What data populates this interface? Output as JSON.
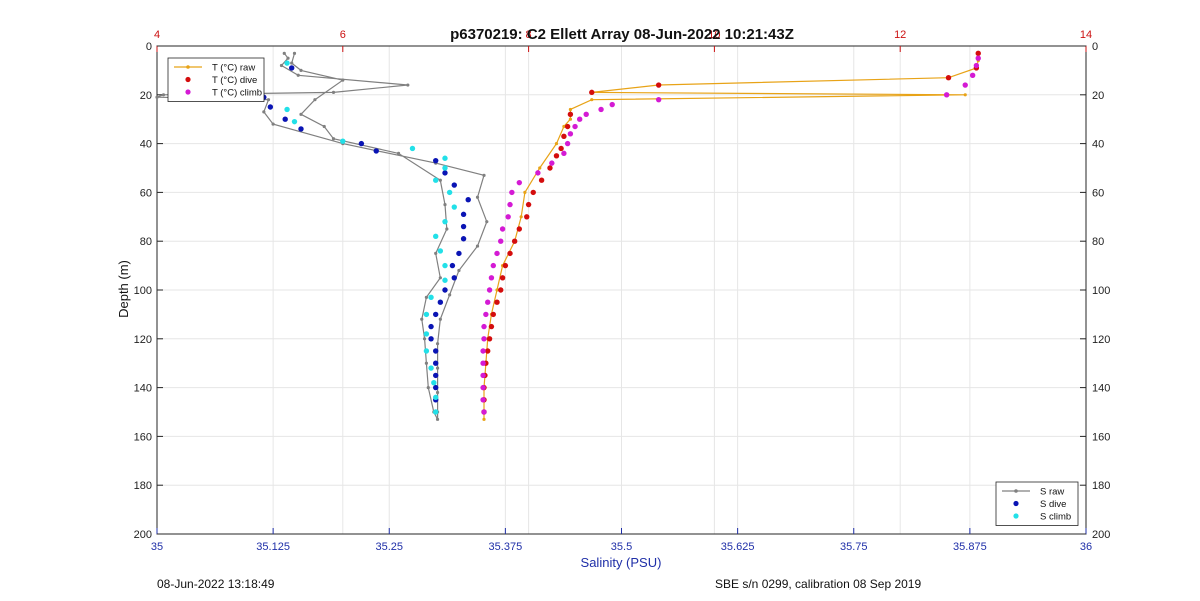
{
  "chart_data": {
    "type": "line",
    "title": "p6370219: C2 Ellett Array 08-Jun-2022 10:21:43Z",
    "xlabel": "Salinity (PSU)",
    "ylabel": "Depth (m)",
    "xlim": [
      35,
      36
    ],
    "xticks": [
      "35",
      "35.125",
      "35.25",
      "35.375",
      "35.5",
      "35.625",
      "35.75",
      "35.875",
      "36"
    ],
    "x2lim": [
      4,
      14
    ],
    "x2ticks": [
      "4",
      "6",
      "8",
      "10",
      "12",
      "14"
    ],
    "ylim": [
      0,
      200
    ],
    "y_reversed": true,
    "yticks": [
      "0",
      "20",
      "40",
      "60",
      "80",
      "100",
      "120",
      "140",
      "160",
      "180",
      "200"
    ],
    "grid": true,
    "legends": {
      "temperature": {
        "placement": "top-left",
        "entries": [
          "T (°C) raw",
          "T (°C) dive",
          "T (°C) climb"
        ]
      },
      "salinity": {
        "placement": "bottom-right",
        "entries": [
          "S raw",
          "S dive",
          "S climb"
        ]
      }
    },
    "series": [
      {
        "name": "T (°C) raw",
        "axis": "top",
        "color": "#e8a317",
        "style": "line-marker",
        "points": [
          [
            12.84,
            3
          ],
          [
            12.84,
            6
          ],
          [
            12.82,
            9
          ],
          [
            12.52,
            13
          ],
          [
            9.4,
            16
          ],
          [
            8.68,
            19
          ],
          [
            12.7,
            20
          ],
          [
            8.68,
            22
          ],
          [
            8.45,
            26
          ],
          [
            8.45,
            30
          ],
          [
            8.38,
            33
          ],
          [
            8.3,
            40
          ],
          [
            8.12,
            50
          ],
          [
            7.96,
            60
          ],
          [
            7.92,
            70
          ],
          [
            7.85,
            80
          ],
          [
            7.72,
            90
          ],
          [
            7.66,
            100
          ],
          [
            7.6,
            110
          ],
          [
            7.56,
            120
          ],
          [
            7.54,
            130
          ],
          [
            7.52,
            140
          ],
          [
            7.52,
            150
          ],
          [
            7.52,
            153
          ]
        ]
      },
      {
        "name": "T (°C) dive",
        "axis": "top",
        "color": "#d40d0d",
        "style": "marker",
        "points": [
          [
            12.84,
            3
          ],
          [
            12.82,
            9
          ],
          [
            12.52,
            13
          ],
          [
            9.4,
            16
          ],
          [
            8.68,
            19
          ],
          [
            8.45,
            28
          ],
          [
            8.42,
            33
          ],
          [
            8.38,
            37
          ],
          [
            8.35,
            42
          ],
          [
            8.3,
            45
          ],
          [
            8.23,
            50
          ],
          [
            8.14,
            55
          ],
          [
            8.05,
            60
          ],
          [
            8.0,
            65
          ],
          [
            7.98,
            70
          ],
          [
            7.9,
            75
          ],
          [
            7.85,
            80
          ],
          [
            7.8,
            85
          ],
          [
            7.75,
            90
          ],
          [
            7.72,
            95
          ],
          [
            7.7,
            100
          ],
          [
            7.66,
            105
          ],
          [
            7.62,
            110
          ],
          [
            7.6,
            115
          ],
          [
            7.58,
            120
          ],
          [
            7.56,
            125
          ],
          [
            7.54,
            130
          ],
          [
            7.53,
            135
          ],
          [
            7.52,
            140
          ],
          [
            7.52,
            145
          ],
          [
            7.52,
            150
          ]
        ]
      },
      {
        "name": "T (°C) climb",
        "axis": "top",
        "color": "#d41ad4",
        "style": "marker",
        "points": [
          [
            12.84,
            5
          ],
          [
            12.82,
            8
          ],
          [
            12.78,
            12
          ],
          [
            12.7,
            16
          ],
          [
            12.5,
            20
          ],
          [
            9.4,
            22
          ],
          [
            8.9,
            24
          ],
          [
            8.78,
            26
          ],
          [
            8.62,
            28
          ],
          [
            8.55,
            30
          ],
          [
            8.5,
            33
          ],
          [
            8.45,
            36
          ],
          [
            8.42,
            40
          ],
          [
            8.38,
            44
          ],
          [
            8.25,
            48
          ],
          [
            8.1,
            52
          ],
          [
            7.9,
            56
          ],
          [
            7.82,
            60
          ],
          [
            7.8,
            65
          ],
          [
            7.78,
            70
          ],
          [
            7.72,
            75
          ],
          [
            7.7,
            80
          ],
          [
            7.66,
            85
          ],
          [
            7.62,
            90
          ],
          [
            7.6,
            95
          ],
          [
            7.58,
            100
          ],
          [
            7.56,
            105
          ],
          [
            7.54,
            110
          ],
          [
            7.52,
            115
          ],
          [
            7.52,
            120
          ],
          [
            7.51,
            125
          ],
          [
            7.51,
            130
          ],
          [
            7.51,
            135
          ],
          [
            7.51,
            140
          ],
          [
            7.51,
            145
          ],
          [
            7.52,
            150
          ]
        ]
      },
      {
        "name": "S raw",
        "axis": "bottom",
        "color": "#808080",
        "style": "line-marker",
        "points": [
          [
            35.137,
            3
          ],
          [
            35.141,
            5
          ],
          [
            35.134,
            8
          ],
          [
            35.152,
            12
          ],
          [
            35.27,
            16
          ],
          [
            35.19,
            19
          ],
          [
            35.007,
            20
          ],
          [
            35.0,
            21
          ],
          [
            35.12,
            22
          ],
          [
            35.115,
            27
          ],
          [
            35.125,
            32
          ],
          [
            35.2,
            40
          ],
          [
            35.3,
            48
          ],
          [
            35.352,
            53
          ],
          [
            35.345,
            62
          ],
          [
            35.355,
            72
          ],
          [
            35.345,
            82
          ],
          [
            35.325,
            92
          ],
          [
            35.315,
            102
          ],
          [
            35.305,
            112
          ],
          [
            35.302,
            122
          ],
          [
            35.302,
            132
          ],
          [
            35.302,
            142
          ],
          [
            35.302,
            150
          ],
          [
            35.302,
            153
          ],
          [
            35.298,
            150
          ],
          [
            35.292,
            140
          ],
          [
            35.29,
            130
          ],
          [
            35.288,
            120
          ],
          [
            35.285,
            112
          ],
          [
            35.29,
            103
          ],
          [
            35.305,
            95
          ],
          [
            35.3,
            85
          ],
          [
            35.312,
            75
          ],
          [
            35.31,
            65
          ],
          [
            35.305,
            55
          ],
          [
            35.26,
            44
          ],
          [
            35.19,
            38
          ],
          [
            35.18,
            33
          ],
          [
            35.155,
            28
          ],
          [
            35.17,
            22
          ],
          [
            35.2,
            14
          ],
          [
            35.155,
            10
          ],
          [
            35.145,
            7
          ],
          [
            35.148,
            3
          ]
        ]
      },
      {
        "name": "S dive",
        "axis": "bottom",
        "color": "#0a14b4",
        "style": "marker",
        "points": [
          [
            35.145,
            9
          ],
          [
            35.077,
            13
          ],
          [
            35.058,
            16
          ],
          [
            35.115,
            21
          ],
          [
            35.122,
            25
          ],
          [
            35.138,
            30
          ],
          [
            35.155,
            34
          ],
          [
            35.22,
            40
          ],
          [
            35.236,
            43
          ],
          [
            35.3,
            47
          ],
          [
            35.31,
            52
          ],
          [
            35.32,
            57
          ],
          [
            35.335,
            63
          ],
          [
            35.33,
            69
          ],
          [
            35.33,
            74
          ],
          [
            35.33,
            79
          ],
          [
            35.325,
            85
          ],
          [
            35.318,
            90
          ],
          [
            35.32,
            95
          ],
          [
            35.31,
            100
          ],
          [
            35.305,
            105
          ],
          [
            35.3,
            110
          ],
          [
            35.295,
            115
          ],
          [
            35.295,
            120
          ],
          [
            35.3,
            125
          ],
          [
            35.3,
            130
          ],
          [
            35.3,
            135
          ],
          [
            35.3,
            140
          ],
          [
            35.3,
            145
          ]
        ]
      },
      {
        "name": "S climb",
        "axis": "bottom",
        "color": "#22e0e8",
        "style": "marker",
        "points": [
          [
            35.14,
            7
          ],
          [
            35.11,
            15
          ],
          [
            35.095,
            19
          ],
          [
            35.14,
            26
          ],
          [
            35.148,
            31
          ],
          [
            35.2,
            39
          ],
          [
            35.275,
            42
          ],
          [
            35.31,
            46
          ],
          [
            35.31,
            50
          ],
          [
            35.3,
            55
          ],
          [
            35.315,
            60
          ],
          [
            35.32,
            66
          ],
          [
            35.31,
            72
          ],
          [
            35.3,
            78
          ],
          [
            35.305,
            84
          ],
          [
            35.31,
            90
          ],
          [
            35.31,
            96
          ],
          [
            35.295,
            103
          ],
          [
            35.29,
            110
          ],
          [
            35.29,
            118
          ],
          [
            35.29,
            125
          ],
          [
            35.295,
            132
          ],
          [
            35.298,
            138
          ],
          [
            35.3,
            144
          ],
          [
            35.3,
            150
          ]
        ]
      }
    ]
  },
  "footer": {
    "left": "08-Jun-2022 13:18:49",
    "right": "SBE s/n 0299, calibration 08 Sep 2019"
  }
}
